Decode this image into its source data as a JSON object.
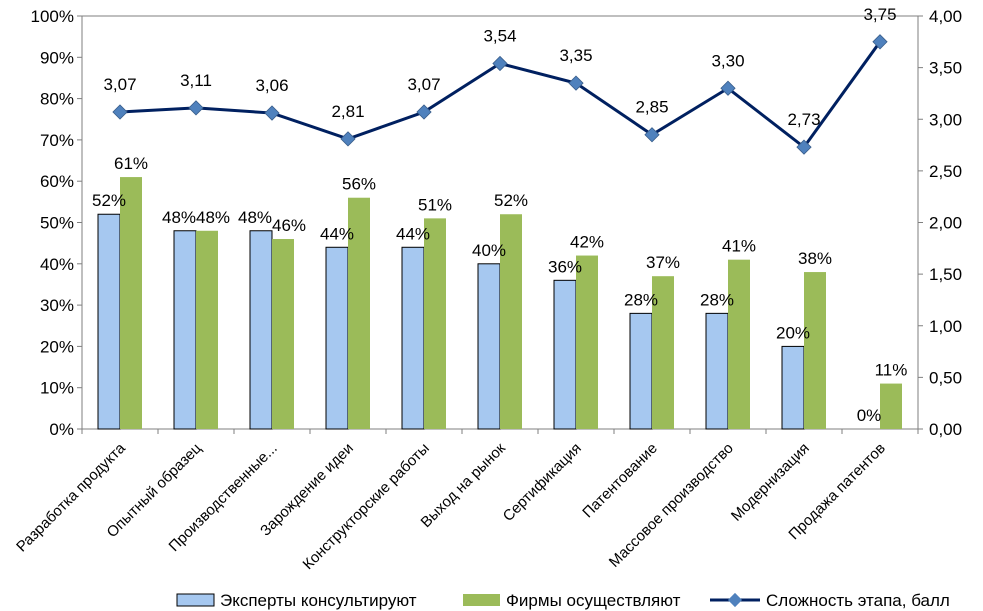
{
  "chart_data": {
    "type": "bar+line",
    "title": "",
    "categories": [
      "Разработка продукта",
      "Опытный образец",
      "Производственные...",
      "Зарождение идеи",
      "Конструкторские работы",
      "Выход на рынок",
      "Сертификация",
      "Патентование",
      "Массовое производство",
      "Модернизация",
      "Продажа патентов"
    ],
    "series": [
      {
        "name": "Эксперты консультируют",
        "type": "bar",
        "axis": "left",
        "color": "#a6c8f0",
        "values": [
          52,
          48,
          48,
          44,
          44,
          40,
          36,
          28,
          28,
          20,
          0
        ],
        "labels": [
          "52%",
          "48%",
          "48%",
          "44%",
          "44%",
          "40%",
          "36%",
          "28%",
          "28%",
          "20%",
          "0%"
        ]
      },
      {
        "name": "Фирмы осуществляют",
        "type": "bar",
        "axis": "left",
        "color": "#9bbb59",
        "values": [
          61,
          48,
          46,
          56,
          51,
          52,
          42,
          37,
          41,
          38,
          11
        ],
        "labels": [
          "61%",
          "48%",
          "46%",
          "56%",
          "51%",
          "52%",
          "42%",
          "37%",
          "41%",
          "38%",
          "11%"
        ]
      },
      {
        "name": "Сложность этапа, балл",
        "type": "line",
        "axis": "right",
        "color": "#002060",
        "marker_color": "#4f81bd",
        "values": [
          3.07,
          3.11,
          3.06,
          2.81,
          3.07,
          3.54,
          3.35,
          2.85,
          3.3,
          2.73,
          3.75
        ],
        "labels": [
          "3,07",
          "3,11",
          "3,06",
          "2,81",
          "3,07",
          "3,54",
          "3,35",
          "2,85",
          "3,30",
          "2,73",
          "3,75"
        ]
      }
    ],
    "y_left": {
      "min": 0,
      "max": 100,
      "ticks": [
        "0%",
        "10%",
        "20%",
        "30%",
        "40%",
        "50%",
        "60%",
        "70%",
        "80%",
        "90%",
        "100%"
      ]
    },
    "y_right": {
      "min": 0,
      "max": 4,
      "ticks": [
        "0,00",
        "0,50",
        "1,00",
        "1,50",
        "2,00",
        "2,50",
        "3,00",
        "3,50",
        "4,00"
      ]
    },
    "grid": false,
    "legend_position": "bottom"
  }
}
